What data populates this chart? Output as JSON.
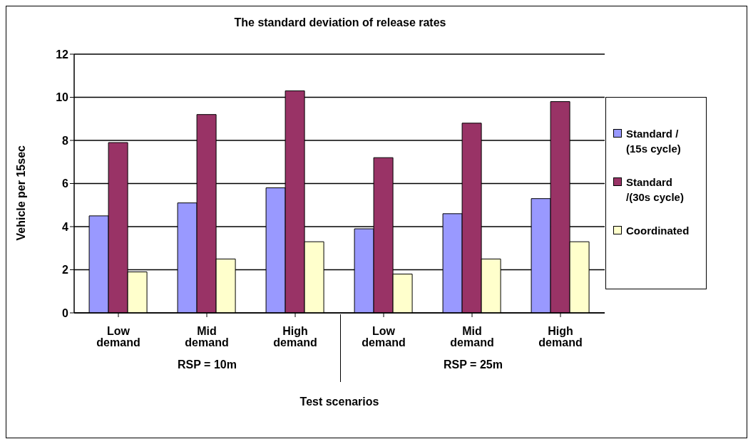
{
  "chart_data": {
    "type": "bar",
    "title": "The standard deviation of release rates",
    "xlabel": "Test scenarios",
    "ylabel": "Vehicle per 15sec",
    "categories": [
      "Low demand",
      "Mid demand",
      "High demand",
      "Low demand",
      "Mid demand",
      "High demand"
    ],
    "series": [
      {
        "name": "Standard / (15s cycle)",
        "color": "#9999ff",
        "values": [
          4.5,
          5.1,
          5.8,
          3.9,
          4.6,
          5.3
        ]
      },
      {
        "name": "Standard /(30s cycle)",
        "color": "#993366",
        "values": [
          7.9,
          9.2,
          10.3,
          7.2,
          8.8,
          9.8
        ]
      },
      {
        "name": "Coordinated",
        "color": "#ffffcc",
        "values": [
          1.9,
          2.5,
          3.3,
          1.8,
          2.5,
          3.3
        ]
      }
    ],
    "annotations": [
      "RSP = 10m",
      "RSP = 25m"
    ],
    "ylim": [
      0,
      12
    ],
    "yticks": [
      0,
      2,
      4,
      6,
      8,
      10,
      12
    ],
    "grid": "y",
    "legend": "right"
  }
}
